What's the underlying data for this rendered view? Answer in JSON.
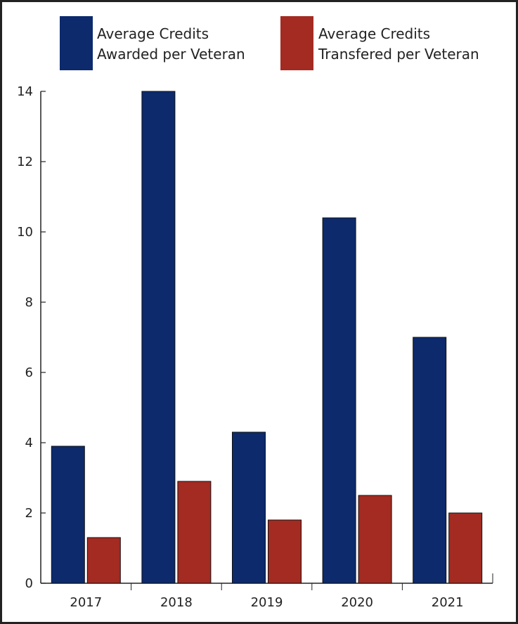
{
  "chart_data": {
    "type": "bar",
    "categories": [
      "2017",
      "2018",
      "2019",
      "2020",
      "2021"
    ],
    "series": [
      {
        "name": "Average Credits Awarded per Veteran",
        "legend_lines": [
          "Average Credits",
          "Awarded per Veteran"
        ],
        "color": "#0c2a6c",
        "values": [
          3.9,
          14.0,
          4.3,
          10.4,
          7.0
        ]
      },
      {
        "name": "Average Credits Transfered per Veteran",
        "legend_lines": [
          "Average Credits",
          "Transfered per Veteran"
        ],
        "color": "#a32b22",
        "values": [
          1.3,
          2.9,
          1.8,
          2.5,
          2.0
        ]
      }
    ],
    "ylim": [
      0,
      14
    ],
    "yticks": [
      0,
      2,
      4,
      6,
      8,
      10,
      12,
      14
    ],
    "title": "",
    "xlabel": "",
    "ylabel": "",
    "grid": false,
    "legend_position": "top"
  }
}
